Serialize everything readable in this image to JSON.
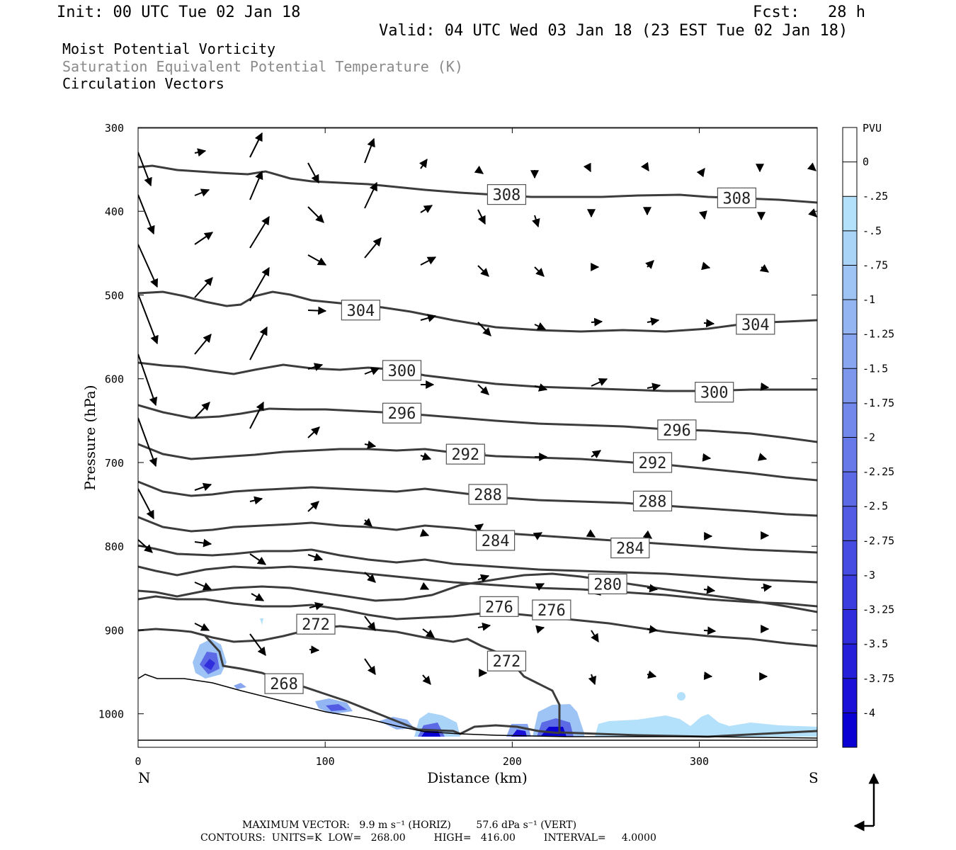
{
  "header": {
    "init": "Init: 00 UTC Tue 02 Jan 18",
    "fcst": "Fcst:   28 h",
    "valid": "Valid: 04 UTC Wed 03 Jan 18 (23 EST Tue 02 Jan 18)",
    "title1": "Moist Potential Vorticity",
    "title2": "Saturation Equivalent Potential Temperature (K)",
    "title3": "Circulation Vectors"
  },
  "footer": {
    "line1": "MAXIMUM VECTOR:   9.9 m s⁻¹ (HORIZ)        57.6 dPa s⁻¹ (VERT)",
    "line2": "CONTOURS:  UNITS=K  LOW=   268.00         HIGH=   416.00         INTERVAL=     4.0000"
  },
  "chart_data": {
    "type": "contour",
    "xlabel": "Distance (km)",
    "ylabel": "Pressure (hPa)",
    "xlim": [
      0,
      363
    ],
    "ylim": [
      1040,
      300
    ],
    "x_ticks": [
      0,
      100,
      200,
      300
    ],
    "y_ticks": [
      300,
      400,
      500,
      600,
      700,
      800,
      900,
      1000
    ],
    "x_end_labels": {
      "left": "N",
      "right": "S"
    },
    "colorbar": {
      "units": "PVU",
      "levels": [
        "0",
        "-.25",
        "-.5",
        "-.75",
        "-1",
        "-1.25",
        "-1.5",
        "-1.75",
        "-2",
        "-2.25",
        "-2.5",
        "-2.75",
        "-3",
        "-3.25",
        "-3.5",
        "-3.75",
        "-4"
      ],
      "colors": [
        "#ffffff",
        "#ffffff",
        "#b3e0fa",
        "#a9d3f7",
        "#9ec4f5",
        "#93b5f2",
        "#88a6f0",
        "#7d97ed",
        "#7288eb",
        "#6779e8",
        "#5c6ae6",
        "#515be3",
        "#464ce1",
        "#3b3dde",
        "#302edc",
        "#251fd9",
        "#1a10d7",
        "#0a00d4"
      ]
    },
    "contour_labels": [
      {
        "label": "308",
        "x": 197,
        "p": 380
      },
      {
        "label": "308",
        "x": 320,
        "p": 384
      },
      {
        "label": "304",
        "x": 119,
        "p": 518
      },
      {
        "label": "304",
        "x": 330,
        "p": 535
      },
      {
        "label": "300",
        "x": 141,
        "p": 590
      },
      {
        "label": "300",
        "x": 308,
        "p": 616
      },
      {
        "label": "296",
        "x": 141,
        "p": 641
      },
      {
        "label": "296",
        "x": 288,
        "p": 661
      },
      {
        "label": "292",
        "x": 175,
        "p": 690
      },
      {
        "label": "292",
        "x": 275,
        "p": 700
      },
      {
        "label": "288",
        "x": 187,
        "p": 738
      },
      {
        "label": "288",
        "x": 275,
        "p": 746
      },
      {
        "label": "284",
        "x": 191,
        "p": 793
      },
      {
        "label": "284",
        "x": 263,
        "p": 802
      },
      {
        "label": "280",
        "x": 251,
        "p": 845
      },
      {
        "label": "276",
        "x": 193,
        "p": 872
      },
      {
        "label": "276",
        "x": 221,
        "p": 876
      },
      {
        "label": "272",
        "x": 95,
        "p": 893
      },
      {
        "label": "272",
        "x": 197,
        "p": 937
      },
      {
        "label": "268",
        "x": 78,
        "p": 964
      }
    ]
  }
}
